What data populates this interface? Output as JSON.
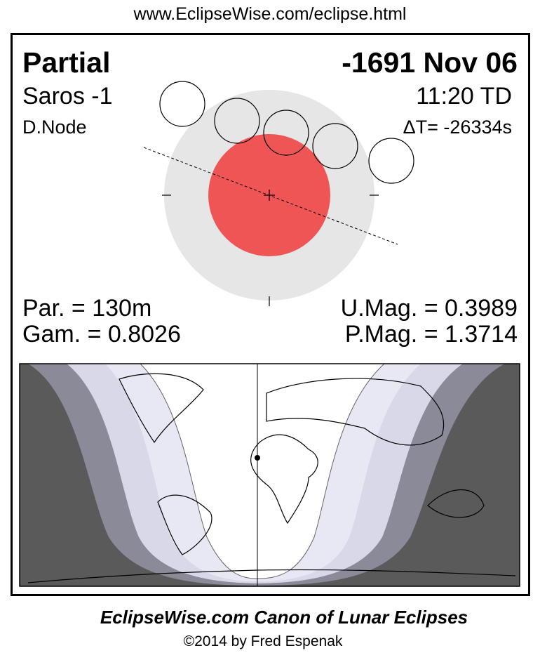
{
  "url": "www.EclipseWise.com/eclipse.html",
  "eclipse": {
    "type": "Partial",
    "date": "-1691 Nov 06",
    "saros": "Saros  -1",
    "time": "11:20 TD",
    "node": "D.Node",
    "delta_t": "ΔT= -26334s",
    "par": "Par. = 130m",
    "gam": "Gam. = 0.8026",
    "umag": "U.Mag. = 0.3989",
    "pmag": "P.Mag. = 1.3714"
  },
  "colors": {
    "umbra": "#f05555",
    "penumbra": "#e6e6e6",
    "night": "#5a5a5a",
    "band1": "#8a8a98",
    "band2": "#d8d8e8",
    "band3": "#e8e8f4"
  },
  "footer": {
    "title": "EclipseWise.com Canon of Lunar Eclipses",
    "copyright": "©2014 by Fred Espenak"
  }
}
